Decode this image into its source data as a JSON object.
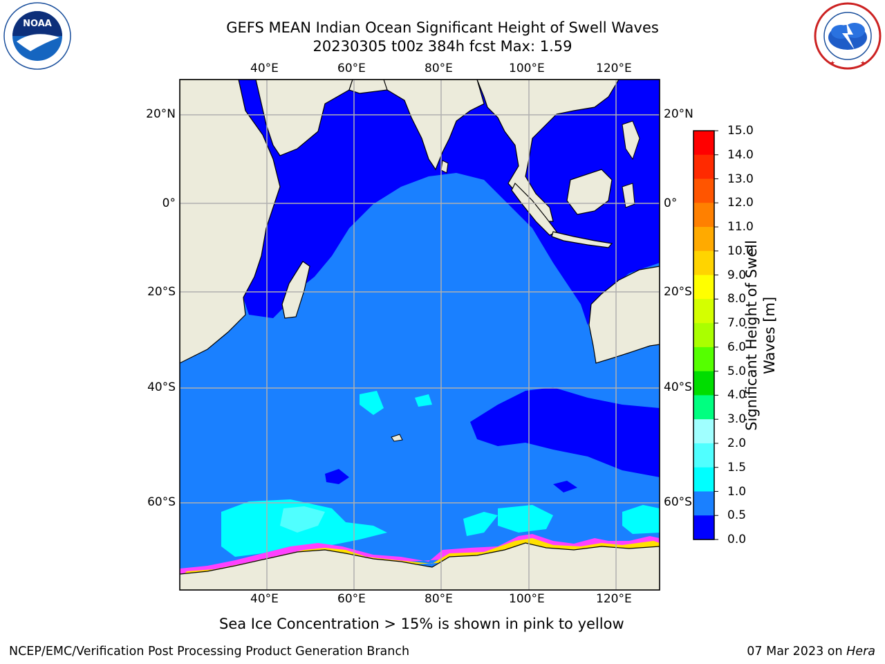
{
  "title": {
    "line1": "GEFS MEAN Indian Ocean Significant Height of Swell Waves",
    "line2": "20230305 t00z 384h fcst   Max: 1.59"
  },
  "logos": {
    "left_name": "NOAA",
    "left_ring_text": "NATIONAL OCEANIC AND ATMOSPHERIC ADMINISTRATION · U.S. DEPARTMENT OF COMMERCE",
    "right_ring_text": "NATIONAL WEATHER SERVICE"
  },
  "map": {
    "top_lon_labels": [
      "40°E",
      "60°E",
      "80°E",
      "100°E",
      "120°E"
    ],
    "bottom_lon_labels": [
      "40°E",
      "60°E",
      "80°E",
      "100°E",
      "120°E"
    ],
    "left_lat_labels": [
      "20°N",
      "0°",
      "20°S",
      "40°S",
      "60°S"
    ],
    "right_lat_labels": [
      "20°N",
      "0°",
      "20°S",
      "40°S",
      "60°S"
    ],
    "gridlines": true,
    "colors": {
      "ocean_main": "#1a80ff",
      "ocean_low": "#0000ff",
      "ocean_cyan": "#00ffff",
      "ocean_light_cyan": "#50ffff",
      "land": "#ecebdb",
      "ice_pink": "#ff40ff",
      "ice_yellow": "#ffe000",
      "grid": "#b0b0b0"
    }
  },
  "colorbar": {
    "label_line1": "Significant Height of Swell",
    "label_line2": "Waves [m]",
    "ticks": [
      "15.0",
      "14.0",
      "13.0",
      "12.0",
      "11.0",
      "10.0",
      "9.0",
      "8.0",
      "7.0",
      "6.0",
      "5.0",
      "4.0",
      "3.0",
      "2.0",
      "1.5",
      "1.0",
      "0.5",
      "0.0"
    ],
    "colors": [
      "#ff0000",
      "#ff2a00",
      "#ff5500",
      "#ff8000",
      "#ffaa00",
      "#ffd400",
      "#ffff00",
      "#d4ff00",
      "#aaff00",
      "#55ff00",
      "#00dd00",
      "#00ff80",
      "#a0ffff",
      "#50ffff",
      "#00ffff",
      "#1a80ff",
      "#0000ff"
    ]
  },
  "caption": "Sea Ice Concentration > 15% is shown in pink to yellow",
  "footer": {
    "left": "NCEP/EMC/Verification Post Processing Product Generation Branch",
    "right_prefix": "07 Mar 2023 on ",
    "right_host": "Hera"
  }
}
